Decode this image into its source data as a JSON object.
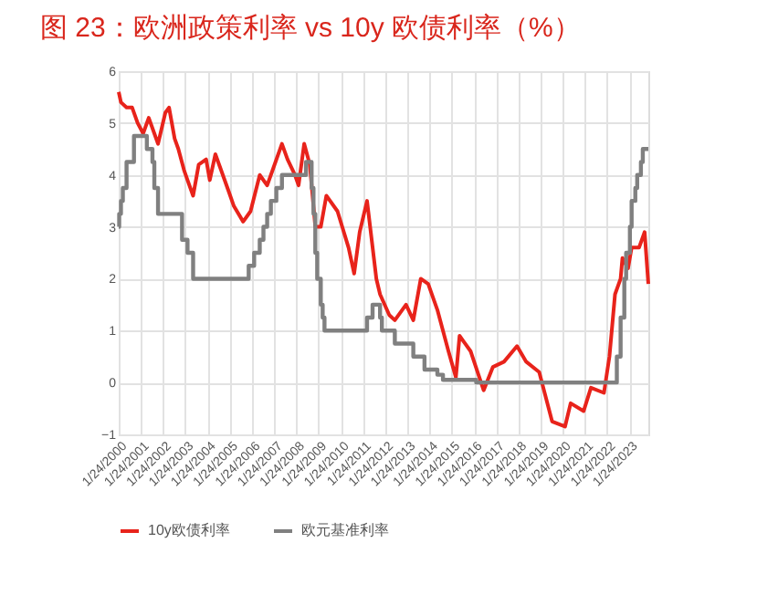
{
  "chart_data": {
    "type": "line",
    "title": "图 23：欧洲政策利率 vs 10y 欧债利率（%）",
    "xlim": [
      "2000-01-24",
      "2023-12-01"
    ],
    "xticks": [
      {
        "value": "2000-01-24",
        "label": "1/24/2000"
      },
      {
        "value": "2001-01-24",
        "label": "1/24/2001"
      },
      {
        "value": "2002-01-24",
        "label": "1/24/2002"
      },
      {
        "value": "2003-01-24",
        "label": "1/24/2003"
      },
      {
        "value": "2004-01-24",
        "label": "1/24/2004"
      },
      {
        "value": "2005-01-24",
        "label": "1/24/2005"
      },
      {
        "value": "2006-01-24",
        "label": "1/24/2006"
      },
      {
        "value": "2007-01-24",
        "label": "1/24/2007"
      },
      {
        "value": "2008-01-24",
        "label": "1/24/2008"
      },
      {
        "value": "2009-01-24",
        "label": "1/24/2009"
      },
      {
        "value": "2010-01-24",
        "label": "1/24/2010"
      },
      {
        "value": "2011-01-24",
        "label": "1/24/2011"
      },
      {
        "value": "2012-01-24",
        "label": "1/24/2012"
      },
      {
        "value": "2013-01-24",
        "label": "1/24/2013"
      },
      {
        "value": "2014-01-24",
        "label": "1/24/2014"
      },
      {
        "value": "2015-01-24",
        "label": "1/24/2015"
      },
      {
        "value": "2016-01-24",
        "label": "1/24/2016"
      },
      {
        "value": "2017-01-24",
        "label": "1/24/2017"
      },
      {
        "value": "2018-01-24",
        "label": "1/24/2018"
      },
      {
        "value": "2019-01-24",
        "label": "1/24/2019"
      },
      {
        "value": "2020-01-24",
        "label": "1/24/2020"
      },
      {
        "value": "2021-01-24",
        "label": "1/24/2021"
      },
      {
        "value": "2022-01-24",
        "label": "1/24/2022"
      },
      {
        "value": "2023-01-24",
        "label": "1/24/2023"
      }
    ],
    "ylim": [
      -1,
      6
    ],
    "yticks": [
      -1,
      0,
      1,
      2,
      3,
      4,
      5,
      6
    ],
    "grid": true,
    "legend": "bottom",
    "series": [
      {
        "name": "10y欧债利率",
        "color": "#e8231b",
        "type": "line",
        "x": [
          "2000-01-24",
          "2000-03",
          "2000-06",
          "2000-09",
          "2000-12",
          "2001-03",
          "2001-06",
          "2001-09",
          "2001-11",
          "2002-03",
          "2002-05",
          "2002-08",
          "2002-10",
          "2003-01",
          "2003-03",
          "2003-06",
          "2003-09",
          "2004-01",
          "2004-03",
          "2004-06",
          "2004-09",
          "2005-01",
          "2005-04",
          "2005-09",
          "2006-01",
          "2006-06",
          "2006-10",
          "2007-01",
          "2007-06",
          "2007-09",
          "2008-01",
          "2008-03",
          "2008-06",
          "2008-09",
          "2008-12",
          "2009-03",
          "2009-06",
          "2009-12",
          "2010-06",
          "2010-09",
          "2010-12",
          "2011-04",
          "2011-09",
          "2011-11",
          "2012-04",
          "2012-07",
          "2013-01",
          "2013-05",
          "2013-09",
          "2014-01",
          "2014-06",
          "2014-12",
          "2015-04",
          "2015-06",
          "2015-12",
          "2016-07",
          "2016-12",
          "2017-06",
          "2018-01",
          "2018-06",
          "2019-01",
          "2019-08",
          "2020-03",
          "2020-06",
          "2021-01",
          "2021-05",
          "2021-12",
          "2022-03",
          "2022-06",
          "2022-09",
          "2022-10",
          "2023-01",
          "2023-03",
          "2023-07",
          "2023-10",
          "2023-12-01"
        ],
        "values": [
          5.6,
          5.4,
          5.3,
          5.3,
          5.0,
          4.8,
          5.1,
          4.8,
          4.6,
          5.2,
          5.3,
          4.7,
          4.5,
          4.1,
          3.9,
          3.6,
          4.2,
          4.3,
          3.9,
          4.4,
          4.1,
          3.7,
          3.4,
          3.1,
          3.3,
          4.0,
          3.8,
          4.1,
          4.6,
          4.3,
          4.0,
          3.8,
          4.6,
          4.2,
          3.0,
          3.0,
          3.6,
          3.3,
          2.6,
          2.1,
          2.9,
          3.5,
          2.0,
          1.7,
          1.3,
          1.2,
          1.5,
          1.2,
          2.0,
          1.9,
          1.4,
          0.6,
          0.1,
          0.9,
          0.6,
          -0.15,
          0.3,
          0.4,
          0.7,
          0.4,
          0.2,
          -0.75,
          -0.85,
          -0.4,
          -0.55,
          -0.1,
          -0.2,
          0.5,
          1.7,
          2.0,
          2.4,
          2.2,
          2.6,
          2.6,
          2.9,
          1.9
        ]
      },
      {
        "name": "欧元基准利率",
        "color": "#808080",
        "type": "step",
        "x": [
          "2000-01-24",
          "2000-02",
          "2000-03",
          "2000-04",
          "2000-06",
          "2000-10",
          "2001-05",
          "2001-08",
          "2001-09",
          "2001-11",
          "2002-12",
          "2003-03",
          "2003-06",
          "2005-12",
          "2006-03",
          "2006-06",
          "2006-08",
          "2006-10",
          "2006-12",
          "2007-03",
          "2007-06",
          "2008-07",
          "2008-10",
          "2008-11",
          "2008-12",
          "2009-01",
          "2009-03",
          "2009-04",
          "2009-05",
          "2011-04",
          "2011-07",
          "2011-11",
          "2011-12",
          "2012-07",
          "2013-05",
          "2013-11",
          "2014-06",
          "2014-09",
          "2016-03",
          "2022-07",
          "2022-09",
          "2022-11",
          "2022-12",
          "2023-02",
          "2023-03",
          "2023-05",
          "2023-06",
          "2023-08",
          "2023-09",
          "2023-12-01"
        ],
        "values": [
          3.0,
          3.25,
          3.5,
          3.75,
          4.25,
          4.75,
          4.5,
          4.25,
          3.75,
          3.25,
          2.75,
          2.5,
          2.0,
          2.25,
          2.5,
          2.75,
          3.0,
          3.25,
          3.5,
          3.75,
          4.0,
          4.25,
          3.75,
          3.25,
          2.5,
          2.0,
          1.5,
          1.25,
          1.0,
          1.25,
          1.5,
          1.25,
          1.0,
          0.75,
          0.5,
          0.25,
          0.15,
          0.05,
          0,
          0.5,
          1.25,
          2.0,
          2.5,
          3.0,
          3.5,
          3.75,
          4.0,
          4.25,
          4.5,
          4.5
        ]
      }
    ]
  }
}
